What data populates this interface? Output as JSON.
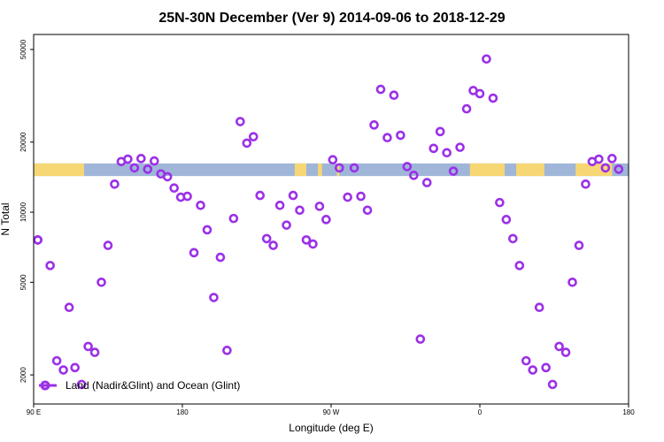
{
  "chart_data": {
    "type": "scatter",
    "title": "25N-30N December (Ver 9)   2014-09-06 to 2018-12-29",
    "xlabel": "Longitude (deg E)",
    "ylabel": "N Total",
    "xlim": [
      90,
      450
    ],
    "ylim": [
      1500,
      58000
    ],
    "yscale": "log",
    "x_ticks": [
      {
        "value": 90,
        "label": "90 E"
      },
      {
        "value": 180,
        "label": "180"
      },
      {
        "value": 270,
        "label": "90 W"
      },
      {
        "value": 360,
        "label": "0"
      },
      {
        "value": 450,
        "label": "180"
      }
    ],
    "y_ticks": [
      {
        "value": 2000,
        "label": "2000"
      },
      {
        "value": 5000,
        "label": "5000"
      },
      {
        "value": 10000,
        "label": "10000"
      },
      {
        "value": 20000,
        "label": "20000"
      },
      {
        "value": 50000,
        "label": "50000"
      }
    ],
    "land_band": {
      "y_range": [
        14300,
        16200
      ],
      "ocean_color": "#9fb6d8",
      "land_color": "#f7d774",
      "land_segments": [
        [
          90,
          120.5
        ],
        [
          248,
          255
        ],
        [
          262,
          264.5
        ],
        [
          273.5,
          275
        ],
        [
          354,
          375
        ],
        [
          382,
          399
        ],
        [
          418,
          440
        ]
      ]
    },
    "legend": {
      "position": "bottom-left",
      "entry": "Land (Nadir&Glint) and Ocean (Glint)"
    },
    "series": [
      {
        "name": "Land (Nadir&Glint) and Ocean (Glint)",
        "color": "#9b30e8",
        "points": [
          [
            92.5,
            7600
          ],
          [
            100,
            5900
          ],
          [
            104,
            2300
          ],
          [
            108,
            2100
          ],
          [
            111.5,
            3900
          ],
          [
            115,
            2150
          ],
          [
            119,
            1820
          ],
          [
            123,
            2650
          ],
          [
            127,
            2500
          ],
          [
            131,
            5000
          ],
          [
            135,
            7200
          ],
          [
            139,
            13200
          ],
          [
            143,
            16500
          ],
          [
            147,
            16900
          ],
          [
            151,
            15500
          ],
          [
            155,
            17000
          ],
          [
            159,
            15300
          ],
          [
            163,
            16600
          ],
          [
            167,
            14600
          ],
          [
            171,
            14200
          ],
          [
            175,
            12700
          ],
          [
            179,
            11600
          ],
          [
            183,
            11700
          ],
          [
            187,
            6700
          ],
          [
            191,
            10700
          ],
          [
            195,
            8400
          ],
          [
            199,
            4300
          ],
          [
            203,
            6400
          ],
          [
            207,
            2550
          ],
          [
            211,
            9400
          ],
          [
            215,
            24500
          ],
          [
            219,
            19800
          ],
          [
            223,
            21100
          ],
          [
            227,
            11800
          ],
          [
            231,
            7700
          ],
          [
            235,
            7200
          ],
          [
            239,
            10700
          ],
          [
            243,
            8800
          ],
          [
            247,
            11800
          ],
          [
            251,
            10200
          ],
          [
            255,
            7600
          ],
          [
            259,
            7300
          ],
          [
            263,
            10600
          ],
          [
            267,
            9300
          ],
          [
            271,
            16800
          ],
          [
            275,
            15500
          ],
          [
            280,
            11600
          ],
          [
            284,
            15500
          ],
          [
            288,
            11700
          ],
          [
            292,
            10200
          ],
          [
            296,
            23700
          ],
          [
            300,
            33700
          ],
          [
            304,
            20900
          ],
          [
            308,
            31800
          ],
          [
            312,
            21400
          ],
          [
            316,
            15700
          ],
          [
            320,
            14400
          ],
          [
            324,
            2850
          ],
          [
            328,
            13400
          ],
          [
            332,
            18800
          ],
          [
            336,
            22200
          ],
          [
            340,
            18000
          ],
          [
            344,
            15000
          ],
          [
            348,
            19000
          ],
          [
            352,
            27800
          ],
          [
            356,
            33300
          ],
          [
            360,
            32300
          ],
          [
            364,
            45500
          ],
          [
            368,
            30900
          ],
          [
            372,
            11000
          ],
          [
            376,
            9300
          ],
          [
            380,
            7700
          ],
          [
            384,
            5900
          ],
          [
            388,
            2300
          ],
          [
            392,
            2100
          ],
          [
            396,
            3900
          ],
          [
            400,
            2150
          ],
          [
            404,
            1820
          ],
          [
            408,
            2650
          ],
          [
            412,
            2500
          ],
          [
            416,
            5000
          ],
          [
            420,
            7200
          ],
          [
            424,
            13200
          ],
          [
            428,
            16500
          ],
          [
            432,
            16900
          ],
          [
            436,
            15500
          ],
          [
            440,
            17000
          ],
          [
            444,
            15300
          ],
          [
            92.5,
            7600
          ]
        ]
      }
    ]
  }
}
